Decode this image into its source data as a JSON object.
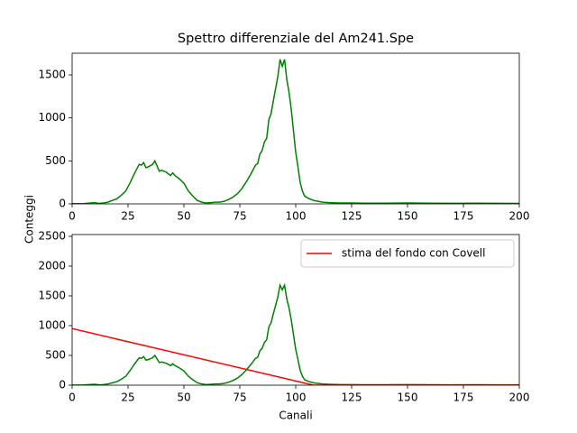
{
  "chart_data": [
    {
      "type": "line",
      "title": "Spettro differenziale del Am241.Spe",
      "ylabel": "Conteggi",
      "xlim": [
        0,
        200
      ],
      "xticks": [
        0,
        25,
        50,
        75,
        100,
        125,
        150,
        175,
        200
      ],
      "ylim": [
        0,
        1752
      ],
      "yticks": [
        0,
        500,
        1000,
        1500
      ],
      "series": [
        {
          "color": "#008000",
          "x": [
            0,
            5,
            10,
            12,
            14,
            16,
            18,
            20,
            22,
            24,
            26,
            28,
            30,
            31,
            32,
            33,
            34,
            36,
            37,
            38,
            39,
            40,
            42,
            44,
            45,
            46,
            48,
            50,
            52,
            54,
            56,
            58,
            60,
            62,
            64,
            66,
            68,
            70,
            72,
            74,
            76,
            78,
            80,
            82,
            83,
            84,
            85,
            86,
            87,
            88,
            89,
            90,
            91,
            92,
            93,
            94,
            95,
            96,
            97,
            98,
            99,
            100,
            101,
            102,
            103,
            104,
            106,
            108,
            110,
            112,
            115,
            120,
            125,
            130,
            140,
            150,
            160,
            170,
            180,
            190,
            200
          ],
          "values": [
            2,
            3,
            15,
            5,
            10,
            20,
            40,
            60,
            100,
            150,
            250,
            360,
            460,
            450,
            480,
            420,
            430,
            460,
            500,
            440,
            380,
            390,
            370,
            330,
            360,
            330,
            290,
            240,
            150,
            90,
            40,
            20,
            10,
            15,
            20,
            20,
            30,
            50,
            80,
            120,
            180,
            260,
            350,
            450,
            470,
            580,
            620,
            720,
            760,
            980,
            1050,
            1200,
            1340,
            1480,
            1680,
            1600,
            1680,
            1450,
            1300,
            1100,
            850,
            600,
            430,
            250,
            150,
            90,
            60,
            40,
            30,
            20,
            15,
            10,
            10,
            8,
            8,
            10,
            8,
            6,
            8,
            6,
            5
          ]
        }
      ]
    },
    {
      "type": "line",
      "xlabel": "Canali",
      "legend": "upper right",
      "xlim": [
        0,
        200
      ],
      "xticks": [
        0,
        25,
        50,
        75,
        100,
        125,
        150,
        175,
        200
      ],
      "ylim": [
        0,
        2530
      ],
      "yticks": [
        0,
        500,
        1000,
        1500,
        2000,
        2500
      ],
      "series": [
        {
          "color": "#008000",
          "x": [
            0,
            5,
            10,
            12,
            14,
            16,
            18,
            20,
            22,
            24,
            26,
            28,
            30,
            31,
            32,
            33,
            34,
            36,
            37,
            38,
            39,
            40,
            42,
            44,
            45,
            46,
            48,
            50,
            52,
            54,
            56,
            58,
            60,
            62,
            64,
            66,
            68,
            70,
            72,
            74,
            76,
            78,
            80,
            82,
            83,
            84,
            85,
            86,
            87,
            88,
            89,
            90,
            91,
            92,
            93,
            94,
            95,
            96,
            97,
            98,
            99,
            100,
            101,
            102,
            103,
            104,
            106,
            108,
            110,
            112,
            115,
            120,
            125,
            130,
            140,
            150,
            160,
            170,
            180,
            190,
            200
          ],
          "values": [
            2,
            3,
            15,
            5,
            10,
            20,
            40,
            60,
            100,
            150,
            250,
            360,
            460,
            450,
            480,
            420,
            430,
            460,
            500,
            440,
            380,
            390,
            370,
            330,
            360,
            330,
            290,
            240,
            150,
            90,
            40,
            20,
            10,
            15,
            20,
            20,
            30,
            50,
            80,
            120,
            180,
            260,
            350,
            450,
            470,
            580,
            620,
            720,
            760,
            980,
            1050,
            1200,
            1340,
            1480,
            1680,
            1600,
            1680,
            1450,
            1300,
            1100,
            850,
            600,
            430,
            250,
            150,
            90,
            60,
            40,
            30,
            20,
            15,
            10,
            10,
            8,
            8,
            10,
            8,
            6,
            8,
            6,
            5
          ]
        },
        {
          "name": "stima del fondo con Covell",
          "color": "#ff0000",
          "x": [
            0,
            108,
            200
          ],
          "values": [
            950,
            0,
            0
          ]
        }
      ]
    }
  ]
}
